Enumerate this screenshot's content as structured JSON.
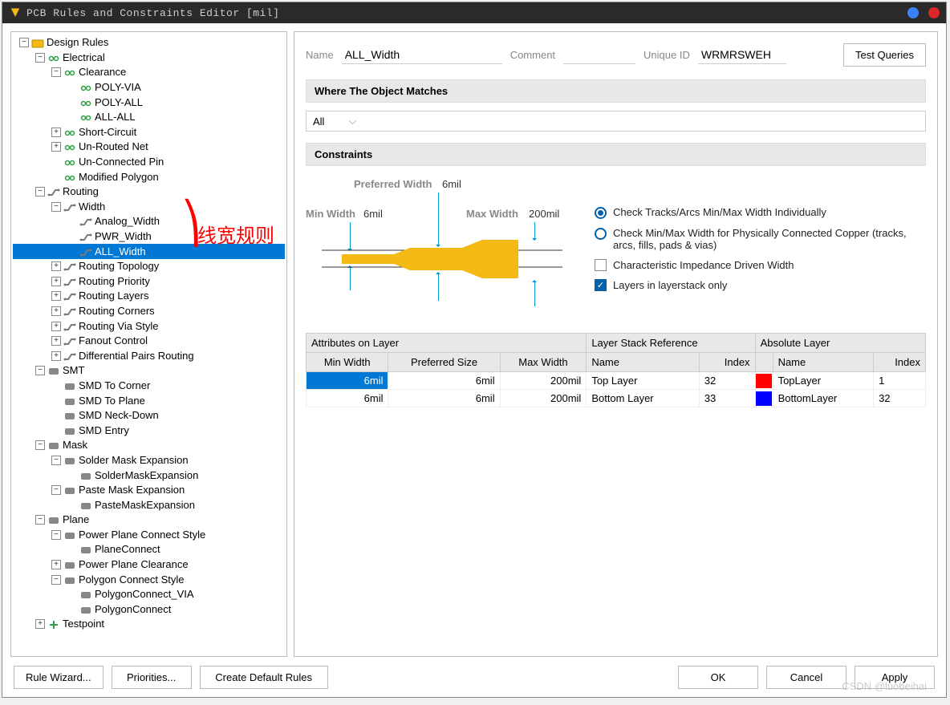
{
  "window": {
    "title": "PCB Rules and Constraints Editor [mil]"
  },
  "tree": [
    {
      "d": 0,
      "exp": "-",
      "icon": "folder",
      "label": "Design Rules"
    },
    {
      "d": 1,
      "exp": "-",
      "icon": "elec",
      "label": "Electrical"
    },
    {
      "d": 2,
      "exp": "-",
      "icon": "elec",
      "label": "Clearance"
    },
    {
      "d": 3,
      "exp": "",
      "icon": "elec",
      "label": "POLY-VIA"
    },
    {
      "d": 3,
      "exp": "",
      "icon": "elec",
      "label": "POLY-ALL"
    },
    {
      "d": 3,
      "exp": "",
      "icon": "elec",
      "label": "ALL-ALL"
    },
    {
      "d": 2,
      "exp": "+",
      "icon": "elec",
      "label": "Short-Circuit"
    },
    {
      "d": 2,
      "exp": "+",
      "icon": "elec",
      "label": "Un-Routed Net"
    },
    {
      "d": 2,
      "exp": "",
      "icon": "elec",
      "label": "Un-Connected Pin"
    },
    {
      "d": 2,
      "exp": "",
      "icon": "elec",
      "label": "Modified Polygon"
    },
    {
      "d": 1,
      "exp": "-",
      "icon": "route",
      "label": "Routing"
    },
    {
      "d": 2,
      "exp": "-",
      "icon": "route",
      "label": "Width"
    },
    {
      "d": 3,
      "exp": "",
      "icon": "route",
      "label": "Analog_Width"
    },
    {
      "d": 3,
      "exp": "",
      "icon": "route",
      "label": "PWR_Width"
    },
    {
      "d": 3,
      "exp": "",
      "icon": "route",
      "label": "ALL_Width",
      "selected": true
    },
    {
      "d": 2,
      "exp": "+",
      "icon": "route",
      "label": "Routing Topology"
    },
    {
      "d": 2,
      "exp": "+",
      "icon": "route",
      "label": "Routing Priority"
    },
    {
      "d": 2,
      "exp": "+",
      "icon": "route",
      "label": "Routing Layers"
    },
    {
      "d": 2,
      "exp": "+",
      "icon": "route",
      "label": "Routing Corners"
    },
    {
      "d": 2,
      "exp": "+",
      "icon": "route",
      "label": "Routing Via Style"
    },
    {
      "d": 2,
      "exp": "+",
      "icon": "route",
      "label": "Fanout Control"
    },
    {
      "d": 2,
      "exp": "+",
      "icon": "route",
      "label": "Differential Pairs Routing"
    },
    {
      "d": 1,
      "exp": "-",
      "icon": "smt",
      "label": "SMT"
    },
    {
      "d": 2,
      "exp": "",
      "icon": "smt",
      "label": "SMD To Corner"
    },
    {
      "d": 2,
      "exp": "",
      "icon": "smt",
      "label": "SMD To Plane"
    },
    {
      "d": 2,
      "exp": "",
      "icon": "smt",
      "label": "SMD Neck-Down"
    },
    {
      "d": 2,
      "exp": "",
      "icon": "smt",
      "label": "SMD Entry"
    },
    {
      "d": 1,
      "exp": "-",
      "icon": "mask",
      "label": "Mask"
    },
    {
      "d": 2,
      "exp": "-",
      "icon": "mask",
      "label": "Solder Mask Expansion"
    },
    {
      "d": 3,
      "exp": "",
      "icon": "mask",
      "label": "SolderMaskExpansion"
    },
    {
      "d": 2,
      "exp": "-",
      "icon": "mask",
      "label": "Paste Mask Expansion"
    },
    {
      "d": 3,
      "exp": "",
      "icon": "mask",
      "label": "PasteMaskExpansion"
    },
    {
      "d": 1,
      "exp": "-",
      "icon": "plane",
      "label": "Plane"
    },
    {
      "d": 2,
      "exp": "-",
      "icon": "plane",
      "label": "Power Plane Connect Style"
    },
    {
      "d": 3,
      "exp": "",
      "icon": "plane",
      "label": "PlaneConnect"
    },
    {
      "d": 2,
      "exp": "+",
      "icon": "plane",
      "label": "Power Plane Clearance"
    },
    {
      "d": 2,
      "exp": "-",
      "icon": "plane",
      "label": "Polygon Connect Style"
    },
    {
      "d": 3,
      "exp": "",
      "icon": "plane",
      "label": "PolygonConnect_VIA"
    },
    {
      "d": 3,
      "exp": "",
      "icon": "plane",
      "label": "PolygonConnect"
    },
    {
      "d": 1,
      "exp": "+",
      "icon": "test",
      "label": "Testpoint"
    }
  ],
  "annotation": {
    "text": "线宽规则"
  },
  "header": {
    "name_label": "Name",
    "name_value": "ALL_Width",
    "comment_label": "Comment",
    "comment_value": "",
    "uniqueid_label": "Unique ID",
    "uniqueid_value": "WRMRSWEH",
    "test_queries": "Test Queries"
  },
  "sections": {
    "where": "Where The Object Matches",
    "constraints": "Constraints"
  },
  "scope": {
    "value": "All"
  },
  "diagram": {
    "preferred_label": "Preferred Width",
    "preferred_value": "6mil",
    "min_label": "Min Width",
    "min_value": "6mil",
    "max_label": "Max Width",
    "max_value": "200mil",
    "trace_color": "#f5b915",
    "line_color": "#333333",
    "arrow_color": "#0099cc"
  },
  "options": {
    "radio1": "Check Tracks/Arcs Min/Max Width Individually",
    "radio2": "Check Min/Max Width for Physically Connected Copper (tracks, arcs, fills, pads & vias)",
    "check1": "Characteristic Impedance Driven Width",
    "check2": "Layers in layerstack only",
    "radio_selected": 1,
    "check2_checked": true
  },
  "table": {
    "group_headers": [
      "Attributes on Layer",
      "Layer Stack Reference",
      "Absolute Layer"
    ],
    "columns": [
      "Min Width",
      "Preferred Size",
      "Max Width",
      "Name",
      "Index",
      "",
      "Name",
      "Index"
    ],
    "rows": [
      {
        "sel": true,
        "min": "6mil",
        "pref": "6mil",
        "max": "200mil",
        "lname": "Top Layer",
        "lidx": "32",
        "color": "#ff0000",
        "aname": "TopLayer",
        "aidx": "1"
      },
      {
        "sel": false,
        "min": "6mil",
        "pref": "6mil",
        "max": "200mil",
        "lname": "Bottom Layer",
        "lidx": "33",
        "color": "#0000ff",
        "aname": "BottomLayer",
        "aidx": "32"
      }
    ]
  },
  "footer": {
    "rule_wizard": "Rule Wizard...",
    "priorities": "Priorities...",
    "create_default": "Create Default Rules",
    "ok": "OK",
    "cancel": "Cancel",
    "apply": "Apply"
  },
  "watermark": "CSDN @luobeihai",
  "icon_colors": {
    "folder": "#f5b915",
    "elec": "#2ea043",
    "route": "#7a7a7a",
    "smt": "#888888",
    "mask": "#888888",
    "plane": "#888888",
    "test": "#2ea043"
  }
}
